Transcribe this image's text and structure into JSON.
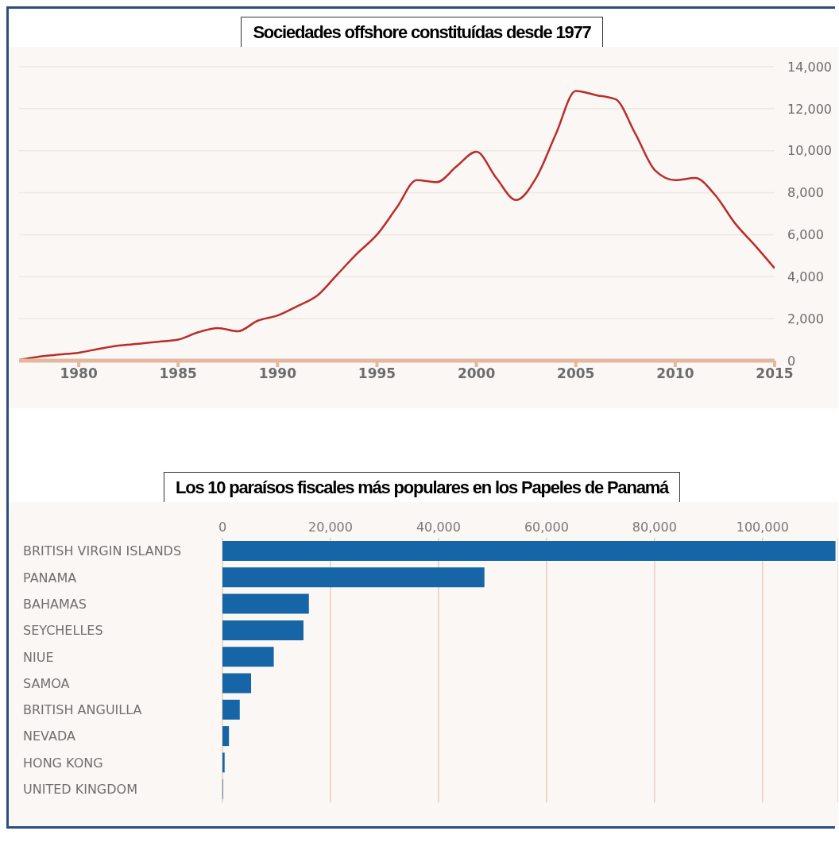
{
  "chart_data": [
    {
      "type": "line",
      "title": "Sociedades offshore constituídas desde 1977",
      "x": [
        1977,
        1978,
        1979,
        1980,
        1981,
        1982,
        1983,
        1984,
        1985,
        1986,
        1987,
        1988,
        1989,
        1990,
        1991,
        1992,
        1993,
        1994,
        1995,
        1996,
        1997,
        1998,
        1999,
        2000,
        2001,
        2002,
        2003,
        2004,
        2005,
        2006,
        2007,
        2008,
        2009,
        2010,
        2011,
        2012,
        2013,
        2014,
        2015
      ],
      "series": [
        {
          "color": "#b92d2b",
          "values": [
            40,
            190,
            290,
            380,
            560,
            720,
            800,
            900,
            1000,
            1350,
            1550,
            1400,
            1900,
            2150,
            2600,
            3100,
            4100,
            5100,
            6000,
            7300,
            8600,
            8500,
            9250,
            9950,
            8700,
            7650,
            8700,
            10800,
            12850,
            12650,
            12450,
            10800,
            9050,
            8600,
            8700,
            7900,
            6550,
            5500,
            4400
          ]
        }
      ],
      "xlim": [
        1977,
        2015
      ],
      "xticks": [
        1980,
        1985,
        1990,
        1995,
        2000,
        2005,
        2010,
        2015
      ],
      "ylim": [
        0,
        14000
      ],
      "yticks": [
        0,
        {
          "value": 2000,
          "label": "2,000"
        },
        {
          "value": 4000,
          "label": "4,000"
        },
        {
          "value": 6000,
          "label": "6,000"
        },
        {
          "value": 8000,
          "label": "8,000"
        },
        {
          "value": 10000,
          "label": "10,000"
        },
        {
          "value": 12000,
          "label": "12,000"
        },
        {
          "value": 14000,
          "label": "14,000"
        }
      ],
      "grid": "y",
      "marker": "none",
      "line_style": "solid"
    },
    {
      "type": "bar",
      "title": "Los 10 paraísos fiscales más populares en los Papeles de Panamá",
      "orientation": "horizontal",
      "categories": [
        "BRITISH VIRGIN ISLANDS",
        "PANAMA",
        "BAHAMAS",
        "SEYCHELLES",
        "NIUE",
        "SAMOA",
        "BRITISH ANGUILLA",
        "NEVADA",
        "HONG KONG",
        "UNITED KINGDOM"
      ],
      "values": [
        113500,
        48500,
        16000,
        15000,
        9500,
        5300,
        3200,
        1200,
        400,
        100
      ],
      "color": "#1565a7",
      "xlim": [
        0,
        114000
      ],
      "xticks": [
        0,
        {
          "value": 20000,
          "label": "20,000"
        },
        {
          "value": 40000,
          "label": "40,000"
        },
        {
          "value": 60000,
          "label": "60,000"
        },
        {
          "value": 80000,
          "label": "80,000"
        },
        {
          "value": 100000,
          "label": "100,000"
        }
      ],
      "grid": "x"
    }
  ]
}
